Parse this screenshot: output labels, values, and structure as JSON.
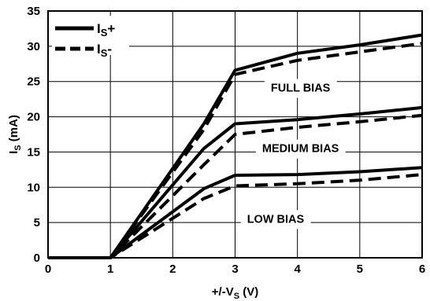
{
  "chart_data": {
    "type": "line",
    "x_label": "+/-V",
    "x_label_sub": "S",
    "x_label_unit": " (V)",
    "y_label": "I",
    "y_label_sub": "S",
    "y_label_unit": " (mA)",
    "xlim": [
      0,
      6
    ],
    "ylim": [
      0,
      35
    ],
    "x_ticks": [
      "0",
      "1",
      "2",
      "3",
      "4",
      "5",
      "6"
    ],
    "y_ticks": [
      "0",
      "5",
      "10",
      "15",
      "20",
      "25",
      "30",
      "35"
    ],
    "grid": true,
    "legend_position": "top-left",
    "legend": [
      {
        "label_main": "I",
        "label_sub": "S",
        "label_suffix": "+",
        "style": "solid"
      },
      {
        "label_main": "I",
        "label_sub": "S",
        "label_suffix": "-",
        "style": "dashed"
      }
    ],
    "annotations": [
      {
        "text": "FULL BIAS",
        "x": 4.05,
        "y": 24.0
      },
      {
        "text": "MEDIUM BIAS",
        "x": 4.05,
        "y": 15.4
      },
      {
        "text": "LOW BIAS",
        "x": 3.65,
        "y": 5.4
      }
    ],
    "series": [
      {
        "group": "full",
        "style": "solid",
        "x": [
          0,
          1,
          2.5,
          3,
          4,
          5,
          6
        ],
        "y": [
          0,
          0,
          19.0,
          26.6,
          29.0,
          30.2,
          31.6
        ]
      },
      {
        "group": "full",
        "style": "dashed",
        "x": [
          0,
          1,
          2.5,
          3,
          4,
          5,
          6
        ],
        "y": [
          0,
          0,
          18.2,
          26.0,
          28.0,
          29.2,
          30.4
        ]
      },
      {
        "group": "medium",
        "style": "solid",
        "x": [
          0,
          1,
          2.5,
          3,
          4,
          5,
          6
        ],
        "y": [
          0,
          0,
          15.5,
          19.0,
          19.6,
          20.4,
          21.3
        ]
      },
      {
        "group": "medium",
        "style": "dashed",
        "x": [
          0,
          1,
          2.5,
          3,
          4,
          5,
          6
        ],
        "y": [
          0,
          0,
          13.2,
          17.5,
          18.5,
          19.3,
          20.2
        ]
      },
      {
        "group": "low",
        "style": "solid",
        "x": [
          0,
          1,
          2.5,
          3,
          4,
          5,
          6
        ],
        "y": [
          0,
          0,
          9.8,
          11.7,
          11.8,
          12.2,
          12.8
        ]
      },
      {
        "group": "low",
        "style": "dashed",
        "x": [
          0,
          1,
          2.5,
          3,
          4,
          5,
          6
        ],
        "y": [
          0,
          0,
          8.4,
          10.2,
          10.5,
          11.0,
          11.8
        ]
      }
    ]
  }
}
